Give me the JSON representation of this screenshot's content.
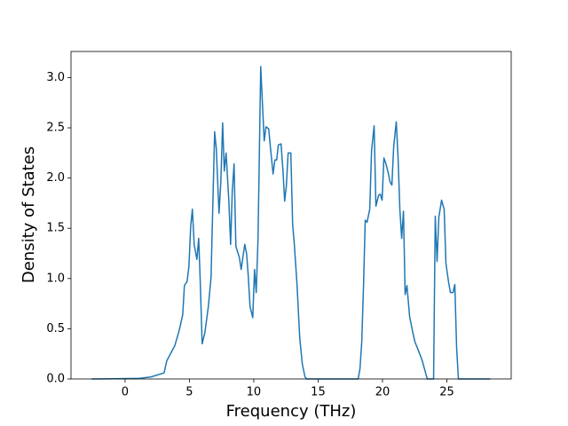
{
  "chart_data": {
    "type": "line",
    "x_label": "Frequency (THz)",
    "y_label": "Density of States",
    "xlim": [
      -4.2,
      30.0
    ],
    "ylim": [
      0,
      3.26
    ],
    "xticks": [
      0,
      5,
      10,
      15,
      20,
      25
    ],
    "yticks": [
      {
        "value": 0,
        "label": "0.0"
      },
      0.5,
      {
        "value": 1,
        "label": "1.0"
      },
      1.5,
      {
        "value": 2,
        "label": "2.0"
      },
      2.5,
      {
        "value": 3,
        "label": "3.0"
      }
    ],
    "series": [
      {
        "color": "#1f77b4",
        "x": [
          -2.6,
          1.0,
          2.0,
          3.03,
          3.24,
          3.86,
          4.2,
          4.48,
          4.61,
          4.82,
          4.96,
          5.1,
          5.23,
          5.37,
          5.58,
          5.72,
          5.85,
          5.99,
          6.2,
          6.47,
          6.68,
          6.82,
          6.96,
          7.09,
          7.3,
          7.44,
          7.58,
          7.71,
          7.85,
          8.06,
          8.2,
          8.33,
          8.47,
          8.61,
          8.88,
          9.02,
          9.3,
          9.44,
          9.57,
          9.71,
          9.92,
          10.06,
          10.19,
          10.33,
          10.54,
          10.67,
          10.81,
          10.95,
          11.16,
          11.29,
          11.5,
          11.64,
          11.78,
          11.91,
          12.12,
          12.26,
          12.4,
          12.53,
          12.67,
          12.88,
          13.02,
          13.15,
          13.36,
          13.57,
          13.77,
          13.98,
          14.12,
          18.11,
          18.25,
          18.39,
          18.53,
          18.66,
          18.8,
          19.01,
          19.15,
          19.35,
          19.49,
          19.7,
          19.83,
          19.97,
          20.11,
          20.25,
          20.45,
          20.59,
          20.73,
          20.87,
          21.07,
          21.21,
          21.35,
          21.49,
          21.63,
          21.76,
          21.9,
          22.11,
          22.31,
          22.52,
          22.8,
          23.07,
          23.35,
          23.48,
          23.97,
          24.1,
          24.24,
          24.38,
          24.59,
          24.79,
          24.93,
          25.14,
          25.28,
          25.48,
          25.62,
          25.76,
          25.9,
          28.37
        ],
        "values": [
          0,
          0.005,
          0.02,
          0.06,
          0.18,
          0.33,
          0.48,
          0.64,
          0.93,
          0.97,
          1.12,
          1.52,
          1.69,
          1.34,
          1.19,
          1.4,
          0.94,
          0.35,
          0.46,
          0.72,
          1.01,
          1.74,
          2.46,
          2.29,
          1.65,
          1.96,
          2.55,
          2.07,
          2.25,
          1.78,
          1.34,
          1.87,
          2.14,
          1.32,
          1.21,
          1.09,
          1.34,
          1.25,
          1.03,
          0.72,
          0.61,
          1.09,
          0.86,
          1.39,
          3.11,
          2.75,
          2.37,
          2.51,
          2.49,
          2.31,
          2.04,
          2.18,
          2.18,
          2.33,
          2.34,
          2.09,
          1.77,
          1.92,
          2.25,
          2.25,
          1.54,
          1.34,
          0.94,
          0.41,
          0.15,
          0.02,
          0,
          0,
          0.1,
          0.37,
          0.94,
          1.58,
          1.56,
          1.69,
          2.27,
          2.52,
          1.72,
          1.83,
          1.84,
          1.78,
          2.2,
          2.15,
          2.05,
          1.96,
          1.93,
          2.31,
          2.56,
          2.2,
          1.69,
          1.4,
          1.67,
          0.84,
          0.93,
          0.62,
          0.49,
          0.37,
          0.28,
          0.19,
          0.06,
          0,
          0,
          1.62,
          1.17,
          1.61,
          1.78,
          1.69,
          1.15,
          0.96,
          0.86,
          0.86,
          0.94,
          0.31,
          0,
          0
        ]
      }
    ]
  }
}
